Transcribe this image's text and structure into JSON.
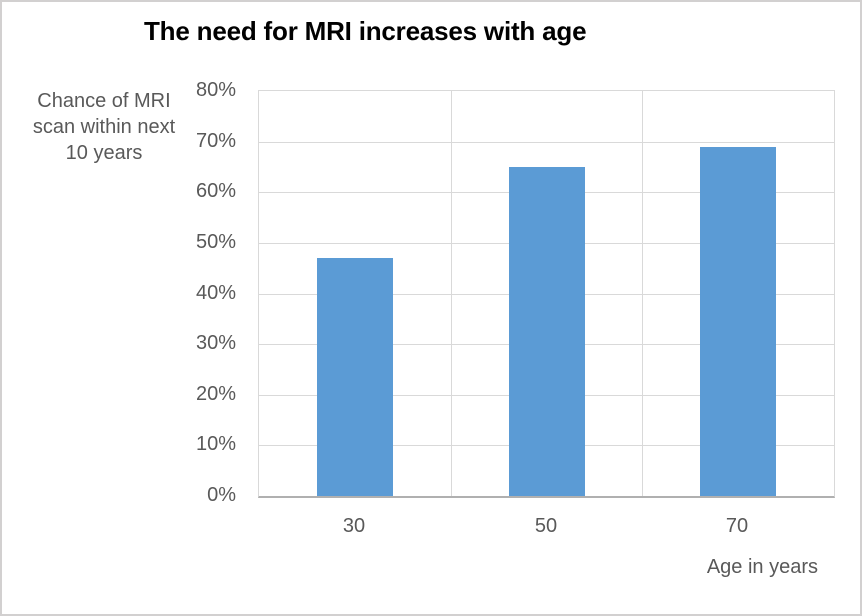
{
  "chart_data": {
    "type": "bar",
    "title": "The need for MRI increases with age",
    "categories": [
      "30",
      "50",
      "70"
    ],
    "values": [
      47,
      65,
      69
    ],
    "value_unit": "%",
    "xlabel": "Age in years",
    "ylabel": "Chance of MRI scan within next 10 years",
    "ylabel_lines": [
      "Chance of MRI",
      "scan within next",
      "10 years"
    ],
    "y_ticks": [
      "80%",
      "70%",
      "60%",
      "50%",
      "40%",
      "30%",
      "20%",
      "10%",
      "0%"
    ],
    "ylim": [
      0,
      80
    ],
    "y_tick_step": 10,
    "grid": true,
    "legend": "none",
    "colors": {
      "bar": "#5b9bd5",
      "gridline": "#d9d9d9",
      "axis_line": "#b0b0b0",
      "tick_text": "#595959",
      "title_text": "#000000",
      "chart_border": "#d2d0d0",
      "background": "#ffffff"
    }
  }
}
